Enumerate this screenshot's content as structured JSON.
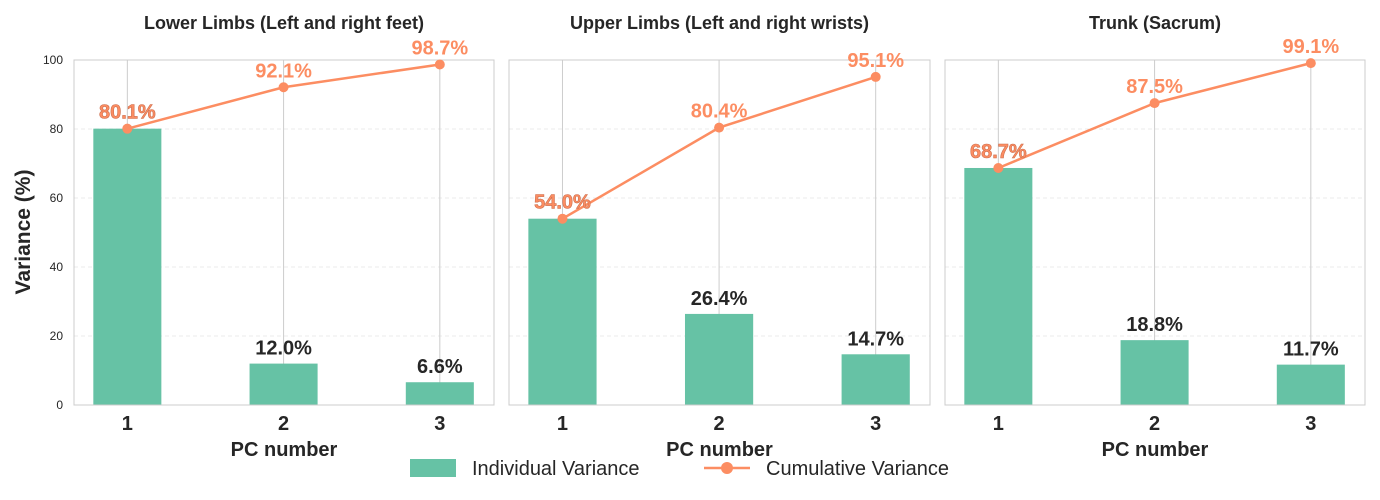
{
  "chart_data": [
    {
      "type": "bar",
      "title": "Lower Limbs (Left and right feet)",
      "xlabel": "PC number",
      "ylabel": "Variance (%)",
      "categories": [
        "1",
        "2",
        "3"
      ],
      "ylim": [
        0,
        100
      ],
      "yticks": [
        "0",
        "20",
        "40",
        "60",
        "80",
        "100"
      ],
      "grid": true,
      "series": [
        {
          "name": "Individual Variance",
          "type": "bar",
          "values": [
            80.1,
            12.0,
            6.6
          ],
          "labels": [
            "80.1%",
            "12.0%",
            "6.6%"
          ]
        },
        {
          "name": "Cumulative Variance",
          "type": "line",
          "values": [
            80.1,
            92.1,
            98.7
          ],
          "labels": [
            "80.1%",
            "92.1%",
            "98.7%"
          ]
        }
      ]
    },
    {
      "type": "bar",
      "title": "Upper Limbs (Left and right wrists)",
      "xlabel": "PC number",
      "categories": [
        "1",
        "2",
        "3"
      ],
      "ylim": [
        0,
        100
      ],
      "grid": true,
      "series": [
        {
          "name": "Individual Variance",
          "type": "bar",
          "values": [
            54.0,
            26.4,
            14.7
          ],
          "labels": [
            "54.0%",
            "26.4%",
            "14.7%"
          ]
        },
        {
          "name": "Cumulative Variance",
          "type": "line",
          "values": [
            54.0,
            80.4,
            95.1
          ],
          "labels": [
            "54.0%",
            "80.4%",
            "95.1%"
          ]
        }
      ]
    },
    {
      "type": "bar",
      "title": "Trunk (Sacrum)",
      "xlabel": "PC number",
      "categories": [
        "1",
        "2",
        "3"
      ],
      "ylim": [
        0,
        100
      ],
      "grid": true,
      "series": [
        {
          "name": "Individual Variance",
          "type": "bar",
          "values": [
            68.7,
            18.8,
            11.7
          ],
          "labels": [
            "68.7%",
            "18.8%",
            "11.7%"
          ]
        },
        {
          "name": "Cumulative Variance",
          "type": "line",
          "values": [
            68.7,
            87.5,
            99.1
          ],
          "labels": [
            "68.7%",
            "87.5%",
            "99.1%"
          ]
        }
      ]
    }
  ],
  "legend": {
    "placement": "bottom-center",
    "items": [
      {
        "label": "Individual Variance",
        "kind": "bar",
        "color": "#66c2a5"
      },
      {
        "label": "Cumulative Variance",
        "kind": "line",
        "color": "#fc8d62"
      }
    ]
  },
  "colors": {
    "bar": "#66c2a5",
    "line": "#fc8d62",
    "text": "#262626",
    "grid": "#cccccc",
    "frame": "#cccccc"
  }
}
